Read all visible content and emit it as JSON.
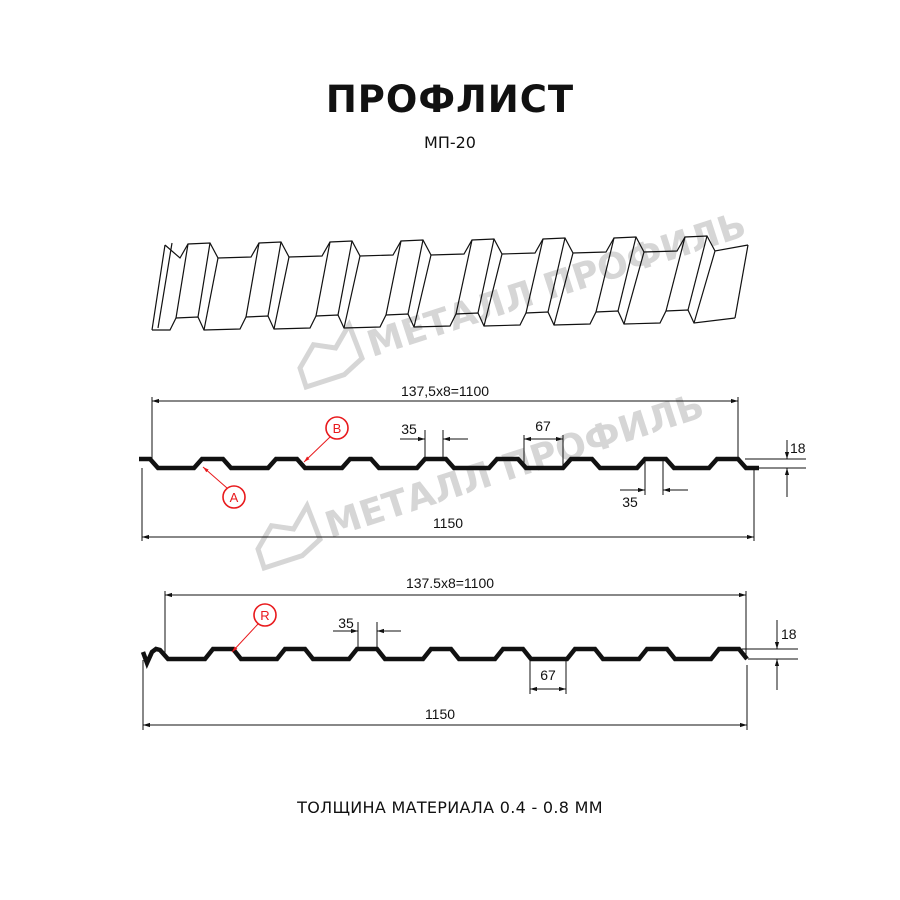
{
  "header": {
    "title": "ПРОФЛИСТ",
    "subtitle": "МП-20"
  },
  "watermark": "МЕТАЛЛ ПРОФИЛЬ",
  "profile_a": {
    "pitch_dim": "137,5x8=1100",
    "total_width": "1150",
    "ridge_top": "35",
    "trough_width": "67",
    "ridge_top_alt": "35",
    "height": "18",
    "callouts": [
      "A",
      "B"
    ]
  },
  "profile_b": {
    "pitch_dim": "137.5x8=1100",
    "total_width": "1150",
    "ridge_top": "35",
    "trough_width": "67",
    "height": "18",
    "callouts": [
      "R"
    ]
  },
  "footer": {
    "thickness": "ТОЛЩИНА МАТЕРИАЛА 0.4 - 0.8 ММ"
  },
  "colors": {
    "profile": "#111111",
    "callout": "#e8191c",
    "watermark": "#d6d6d6"
  }
}
